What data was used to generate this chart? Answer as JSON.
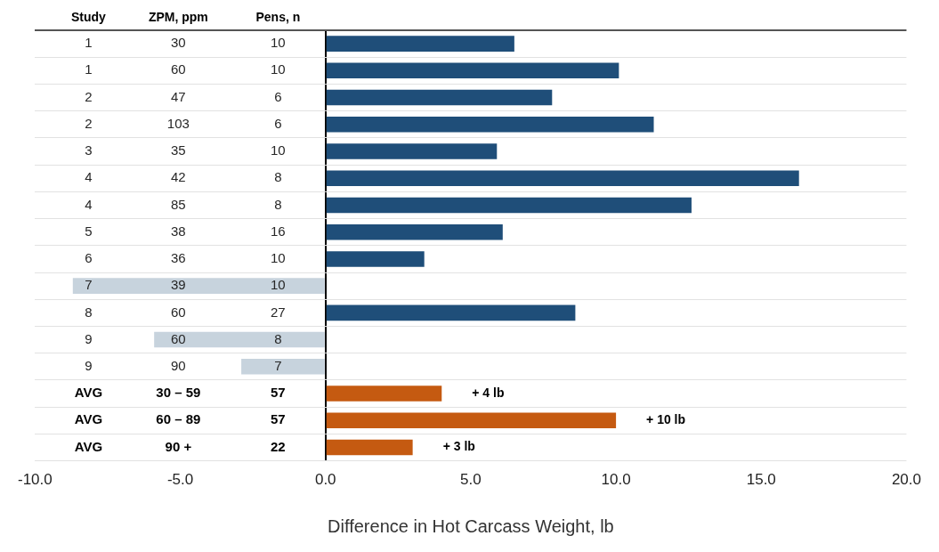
{
  "chart_data": {
    "type": "bar",
    "orientation": "horizontal",
    "stacked": true,
    "xlabel": "Difference in Hot Carcass Weight, lb",
    "categories": [
      "1",
      "1",
      "2",
      "2",
      "3",
      "4",
      "4",
      "5",
      "6",
      "7",
      "8",
      "9",
      "9",
      "AVG",
      "AVG",
      "AVG"
    ],
    "series": [
      {
        "type": "bar",
        "colors": [
          "#1f4e79",
          "#1f4e79",
          "#1f4e79",
          "#1f4e79",
          "#1f4e79",
          "#1f4e79",
          "#1f4e79",
          "#1f4e79",
          "#1f4e79",
          "#c7d3dd",
          "#1f4e79",
          "#c7d3dd",
          "#c7d3dd",
          "#1f4e79",
          "#1f4e79",
          "#1f4e79"
        ],
        "values": [
          6.5,
          10.1,
          7.8,
          11.3,
          5.9,
          16.3,
          12.6,
          6.1,
          3.4,
          -8.7,
          8.6,
          -5.9,
          -2.9,
          null,
          null,
          null
        ]
      },
      {
        "type": "bar",
        "color": "#c55a11",
        "values": [
          null,
          null,
          null,
          null,
          null,
          null,
          null,
          null,
          null,
          null,
          null,
          null,
          null,
          4.0,
          10.0,
          3.0
        ],
        "value_labels": [
          null,
          null,
          null,
          null,
          null,
          null,
          null,
          null,
          null,
          null,
          null,
          null,
          null,
          "+ 4 lb",
          "+ 10 lb",
          "+ 3 lb"
        ]
      }
    ],
    "xlim": [
      -10,
      20
    ],
    "xticks": [
      {
        "value": -10,
        "label": "-10.0"
      },
      {
        "value": -5,
        "label": "-5.0"
      },
      {
        "value": 0,
        "label": "0.0"
      },
      {
        "value": 5,
        "label": "5.0"
      },
      {
        "value": 10,
        "label": "10.0"
      },
      {
        "value": 15,
        "label": "15.0"
      },
      {
        "value": 20,
        "label": "20.0"
      }
    ],
    "grid": "y",
    "legend": false,
    "annotations": [
      "Study",
      "ZPM, ppm",
      "Pens, n",
      "30",
      "10",
      "60",
      "10",
      "47",
      "6",
      "103",
      "6",
      "35",
      "10",
      "42",
      "8",
      "85",
      "8",
      "38",
      "16",
      "36",
      "10",
      "39",
      "10",
      "60",
      "27",
      "60",
      "8",
      "90",
      "7",
      "30 – 59",
      "57",
      "60 – 89",
      "57",
      "90 +",
      "22"
    ]
  }
}
